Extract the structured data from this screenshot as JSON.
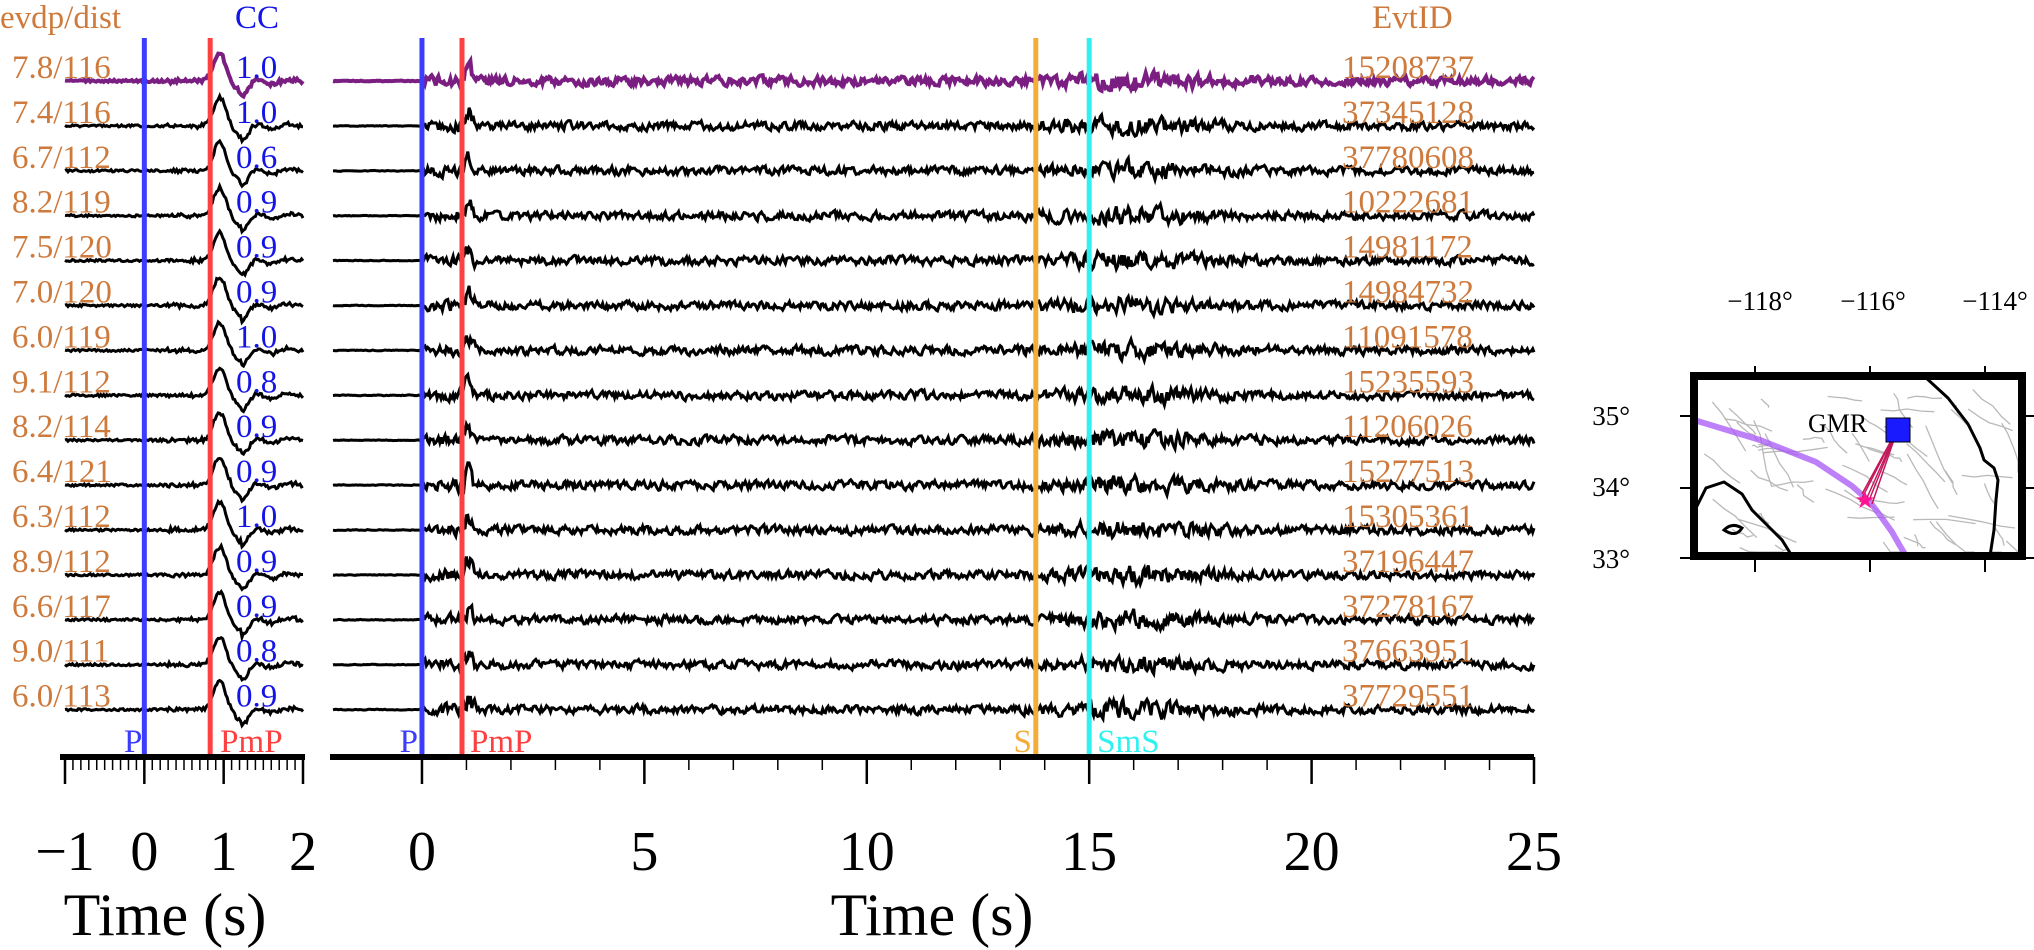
{
  "colors": {
    "label": "#cd7a3c",
    "cc": "#1414e6",
    "p": "#3c3cff",
    "pmp": "#ff4040",
    "s": "#f5ad3a",
    "sms": "#2ef2f2",
    "highlight_trace": "#7a1e82",
    "trace": "#000000"
  },
  "chart_data": [
    {
      "type": "line",
      "title": "",
      "xlabel": "Time (s)",
      "xlim": [
        -1,
        2
      ],
      "xticks": [
        "−1",
        "0",
        "1",
        "2"
      ],
      "header_left": "evdp/dist",
      "header_right": "CC",
      "phases": [
        {
          "name": "P",
          "time": 0
        },
        {
          "name": "PmP",
          "time": 0.83
        }
      ],
      "traces": [
        {
          "label": "7.8/116",
          "cc": "1.0"
        },
        {
          "label": "7.4/116",
          "cc": "1.0"
        },
        {
          "label": "6.7/112",
          "cc": "0.6"
        },
        {
          "label": "8.2/119",
          "cc": "0.9"
        },
        {
          "label": "7.5/120",
          "cc": "0.9"
        },
        {
          "label": "7.0/120",
          "cc": "0.9"
        },
        {
          "label": "6.0/119",
          "cc": "1.0"
        },
        {
          "label": "9.1/112",
          "cc": "0.8"
        },
        {
          "label": "8.2/114",
          "cc": "0.9"
        },
        {
          "label": "6.4/121",
          "cc": "0.9"
        },
        {
          "label": "6.3/112",
          "cc": "1.0"
        },
        {
          "label": "8.9/112",
          "cc": "0.9"
        },
        {
          "label": "6.6/117",
          "cc": "0.9"
        },
        {
          "label": "9.0/111",
          "cc": "0.8"
        },
        {
          "label": "6.0/113",
          "cc": "0.9"
        }
      ]
    },
    {
      "type": "line",
      "title": "",
      "xlabel": "Time (s)",
      "xlim": [
        -2,
        25
      ],
      "xticks": [
        "0",
        "5",
        "10",
        "15",
        "20",
        "25"
      ],
      "header_right": "EvtID",
      "phases": [
        {
          "name": "P",
          "time": 0
        },
        {
          "name": "PmP",
          "time": 0.9
        },
        {
          "name": "S",
          "time": 13.8
        },
        {
          "name": "SmS",
          "time": 15.0
        }
      ],
      "event_ids": [
        "15208737",
        "37345128",
        "37780608",
        "10222681",
        "14981172",
        "14984732",
        "11091578",
        "15235593",
        "11206026",
        "15277513",
        "15305361",
        "37196447",
        "37278167",
        "37663951",
        "37729551"
      ]
    }
  ],
  "map": {
    "station": "GMR",
    "lon_ticks": [
      "−118°",
      "−116°",
      "−114°"
    ],
    "lat_ticks": [
      "35°",
      "34°",
      "33°"
    ]
  }
}
